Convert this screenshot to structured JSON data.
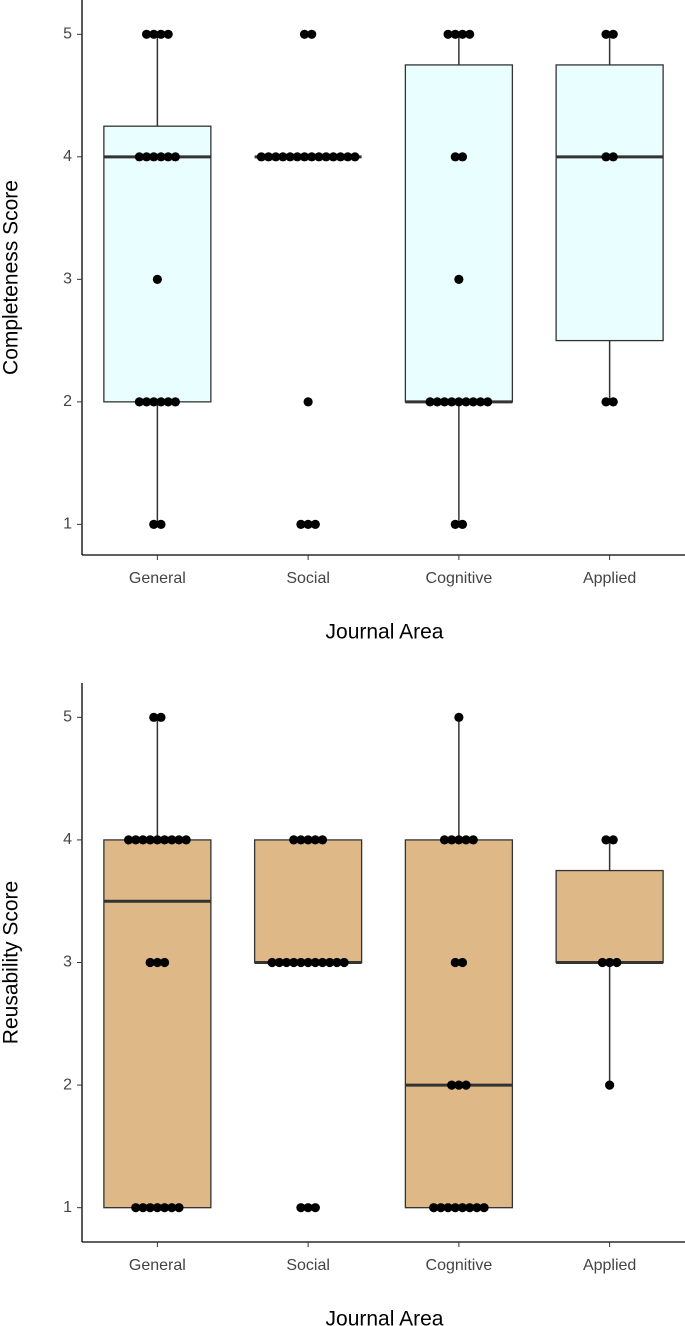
{
  "chart_data": [
    {
      "type": "box",
      "y_label": "Completeness Score",
      "x_label": "Journal Area",
      "categories": [
        "General",
        "Social",
        "Cognitive",
        "Applied"
      ],
      "ylim": [
        0.75,
        5.28
      ],
      "yticks": [
        1,
        2,
        3,
        4,
        5
      ],
      "box_color": "#e9feff",
      "boxes": [
        {
          "min": 1,
          "q1": 2,
          "median": 4,
          "q3": 4.25,
          "max": 5
        },
        {
          "min": 4,
          "q1": 4,
          "median": 4,
          "q3": 4,
          "max": 4
        },
        {
          "min": 1,
          "q1": 2,
          "median": 2,
          "q3": 4.75,
          "max": 5
        },
        {
          "min": 2,
          "q1": 2.5,
          "median": 4,
          "q3": 4.75,
          "max": 5
        }
      ],
      "points": [
        [
          5,
          5,
          5,
          5,
          4,
          4,
          4,
          4,
          4,
          4,
          3,
          2,
          2,
          2,
          2,
          2,
          2,
          1,
          1
        ],
        [
          5,
          5,
          4,
          4,
          4,
          4,
          4,
          4,
          4,
          4,
          4,
          4,
          4,
          4,
          4,
          4,
          2,
          1,
          1,
          1
        ],
        [
          5,
          5,
          5,
          5,
          4,
          4,
          3,
          2,
          2,
          2,
          2,
          2,
          2,
          2,
          2,
          2,
          1,
          1
        ],
        [
          5,
          5,
          4,
          4,
          2,
          2
        ]
      ]
    },
    {
      "type": "box",
      "y_label": "Reusability Score",
      "x_label": "Journal Area",
      "categories": [
        "General",
        "Social",
        "Cognitive",
        "Applied"
      ],
      "ylim": [
        0.72,
        5.28
      ],
      "yticks": [
        1,
        2,
        3,
        4,
        5
      ],
      "box_color": "#deb887",
      "boxes": [
        {
          "min": 1,
          "q1": 1,
          "median": 3.5,
          "q3": 4,
          "max": 5
        },
        {
          "min": 3,
          "q1": 3,
          "median": 3,
          "q3": 4,
          "max": 4
        },
        {
          "min": 1,
          "q1": 1,
          "median": 2,
          "q3": 4,
          "max": 5
        },
        {
          "min": 2,
          "q1": 3,
          "median": 3,
          "q3": 3.75,
          "max": 4
        }
      ],
      "points": [
        [
          5,
          5,
          4,
          4,
          4,
          4,
          4,
          4,
          4,
          4,
          4,
          3,
          3,
          3,
          1,
          1,
          1,
          1,
          1,
          1,
          1
        ],
        [
          4,
          4,
          4,
          4,
          4,
          3,
          3,
          3,
          3,
          3,
          3,
          3,
          3,
          3,
          3,
          3,
          1,
          1,
          1
        ],
        [
          5,
          4,
          4,
          4,
          4,
          4,
          3,
          3,
          2,
          2,
          2,
          1,
          1,
          1,
          1,
          1,
          1,
          1,
          1
        ],
        [
          4,
          4,
          3,
          3,
          3,
          2
        ]
      ]
    }
  ]
}
